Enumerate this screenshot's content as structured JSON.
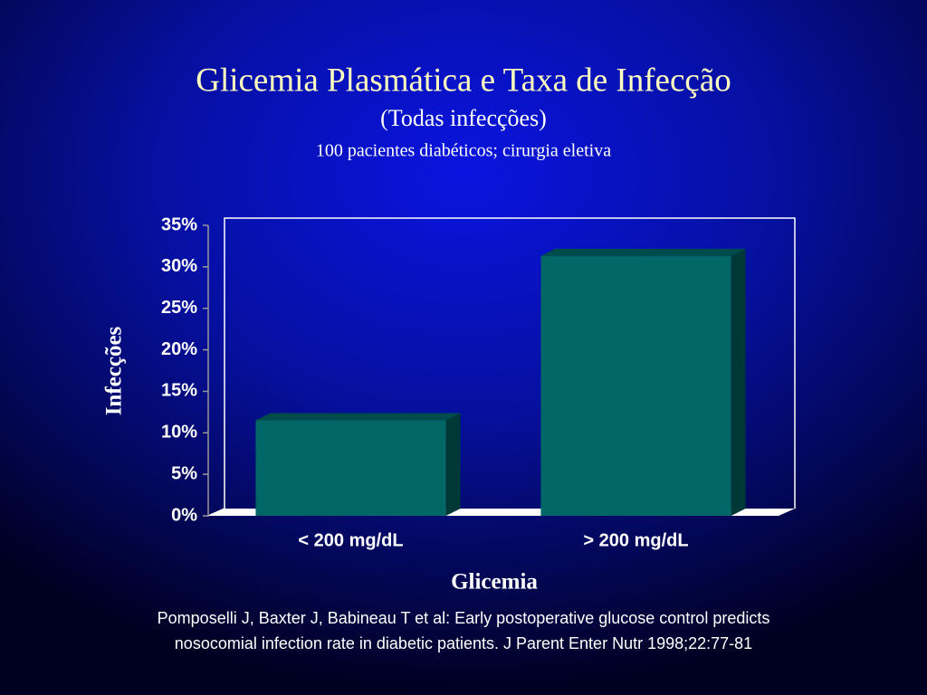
{
  "chart_data": {
    "type": "bar3d",
    "title": "Glicemia Plasmática e Taxa de Infecção",
    "subtitle": "(Todas infecções)",
    "note": "100 pacientes diabéticos; cirurgia eletiva",
    "x_label": "Glicemia",
    "y_label": "Infecções",
    "categories": [
      "< 200 mg/dL",
      "> 200 mg/dL"
    ],
    "values": [
      11.5,
      31.3
    ],
    "color": "#006666",
    "ylim": [
      0,
      35
    ],
    "yticks": [
      {
        "value": 0,
        "label": "0%"
      },
      {
        "value": 5,
        "label": "5%"
      },
      {
        "value": 10,
        "label": "10%"
      },
      {
        "value": 15,
        "label": "15%"
      },
      {
        "value": 20,
        "label": "20%"
      },
      {
        "value": 25,
        "label": "25%"
      },
      {
        "value": 30,
        "label": "30%"
      },
      {
        "value": 35,
        "label": "35%"
      }
    ],
    "grid": false,
    "source": [
      "Pomposelli J, Baxter J, Babineau T et al: Early postoperative glucose control predicts",
      "nosocomial infection rate in diabetic patients. J Parent Enter Nutr 1998;22:77-81"
    ]
  }
}
